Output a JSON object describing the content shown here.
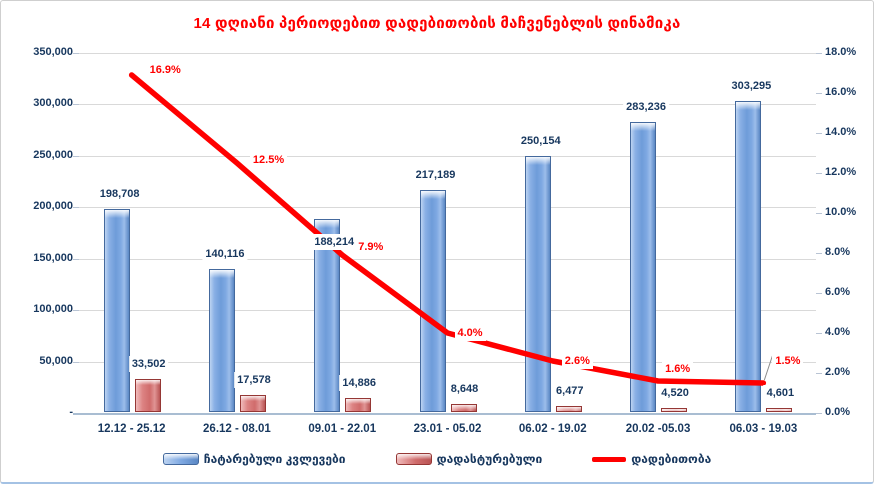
{
  "title": "14 დღიანი პერიოდებით დადებითობის მაჩვენებლის დინამიკა",
  "colors": {
    "title": "#FF0000",
    "axis_text": "#17375E",
    "line": "#FF0000",
    "bar_blue_border": "#44699D",
    "bar_red_border": "#953735",
    "gridline": "#D9D9D9"
  },
  "chart_data": {
    "type": "combo bar+line",
    "title": "14 დღიანი პერიოდებით დადებითობის მაჩვენებლის დინამიკა",
    "categories": [
      "12.12 - 25.12",
      "26.12 - 08.01",
      "09.01 - 22.01",
      "23.01 - 05.02",
      "06.02 - 19.02",
      "20.02 -05.03",
      "06.03 - 19.03"
    ],
    "series": [
      {
        "name": "ჩატარებული კვლევები",
        "type": "bar",
        "axis": "left",
        "values": [
          198708,
          140116,
          188214,
          217189,
          250154,
          283236,
          303295
        ],
        "labels": [
          "198,708",
          "140,116",
          "188,214",
          "217,189",
          "250,154",
          "283,236",
          "303,295"
        ]
      },
      {
        "name": "დადასტურებული",
        "type": "bar",
        "axis": "left",
        "values": [
          33502,
          17578,
          14886,
          8648,
          6477,
          4520,
          4601
        ],
        "labels": [
          "33,502",
          "17,578",
          "14,886",
          "8,648",
          "6,477",
          "4,520",
          "4,601"
        ]
      },
      {
        "name": "დადებითობა",
        "type": "line",
        "axis": "right",
        "values": [
          16.9,
          12.5,
          7.9,
          4.0,
          2.6,
          1.6,
          1.5
        ],
        "labels": [
          "16.9%",
          "12.5%",
          "7.9%",
          "4.0%",
          "2.6%",
          "1.6%",
          "1.5%"
        ]
      }
    ],
    "left_axis": {
      "min": 0,
      "max": 350000,
      "tick_labels_top_to_bottom": [
        "350,000",
        "300,000",
        "250,000",
        "200,000",
        "150,000",
        "100,000",
        "50,000",
        "-"
      ]
    },
    "right_axis": {
      "min": 0,
      "max": 18,
      "tick_labels_top_to_bottom": [
        "18.0%",
        "16.0%",
        "14.0%",
        "12.0%",
        "10.0%",
        "8.0%",
        "6.0%",
        "4.0%",
        "2.0%",
        "0.0%"
      ]
    },
    "grid": "horizontal",
    "legend_position": "bottom"
  }
}
